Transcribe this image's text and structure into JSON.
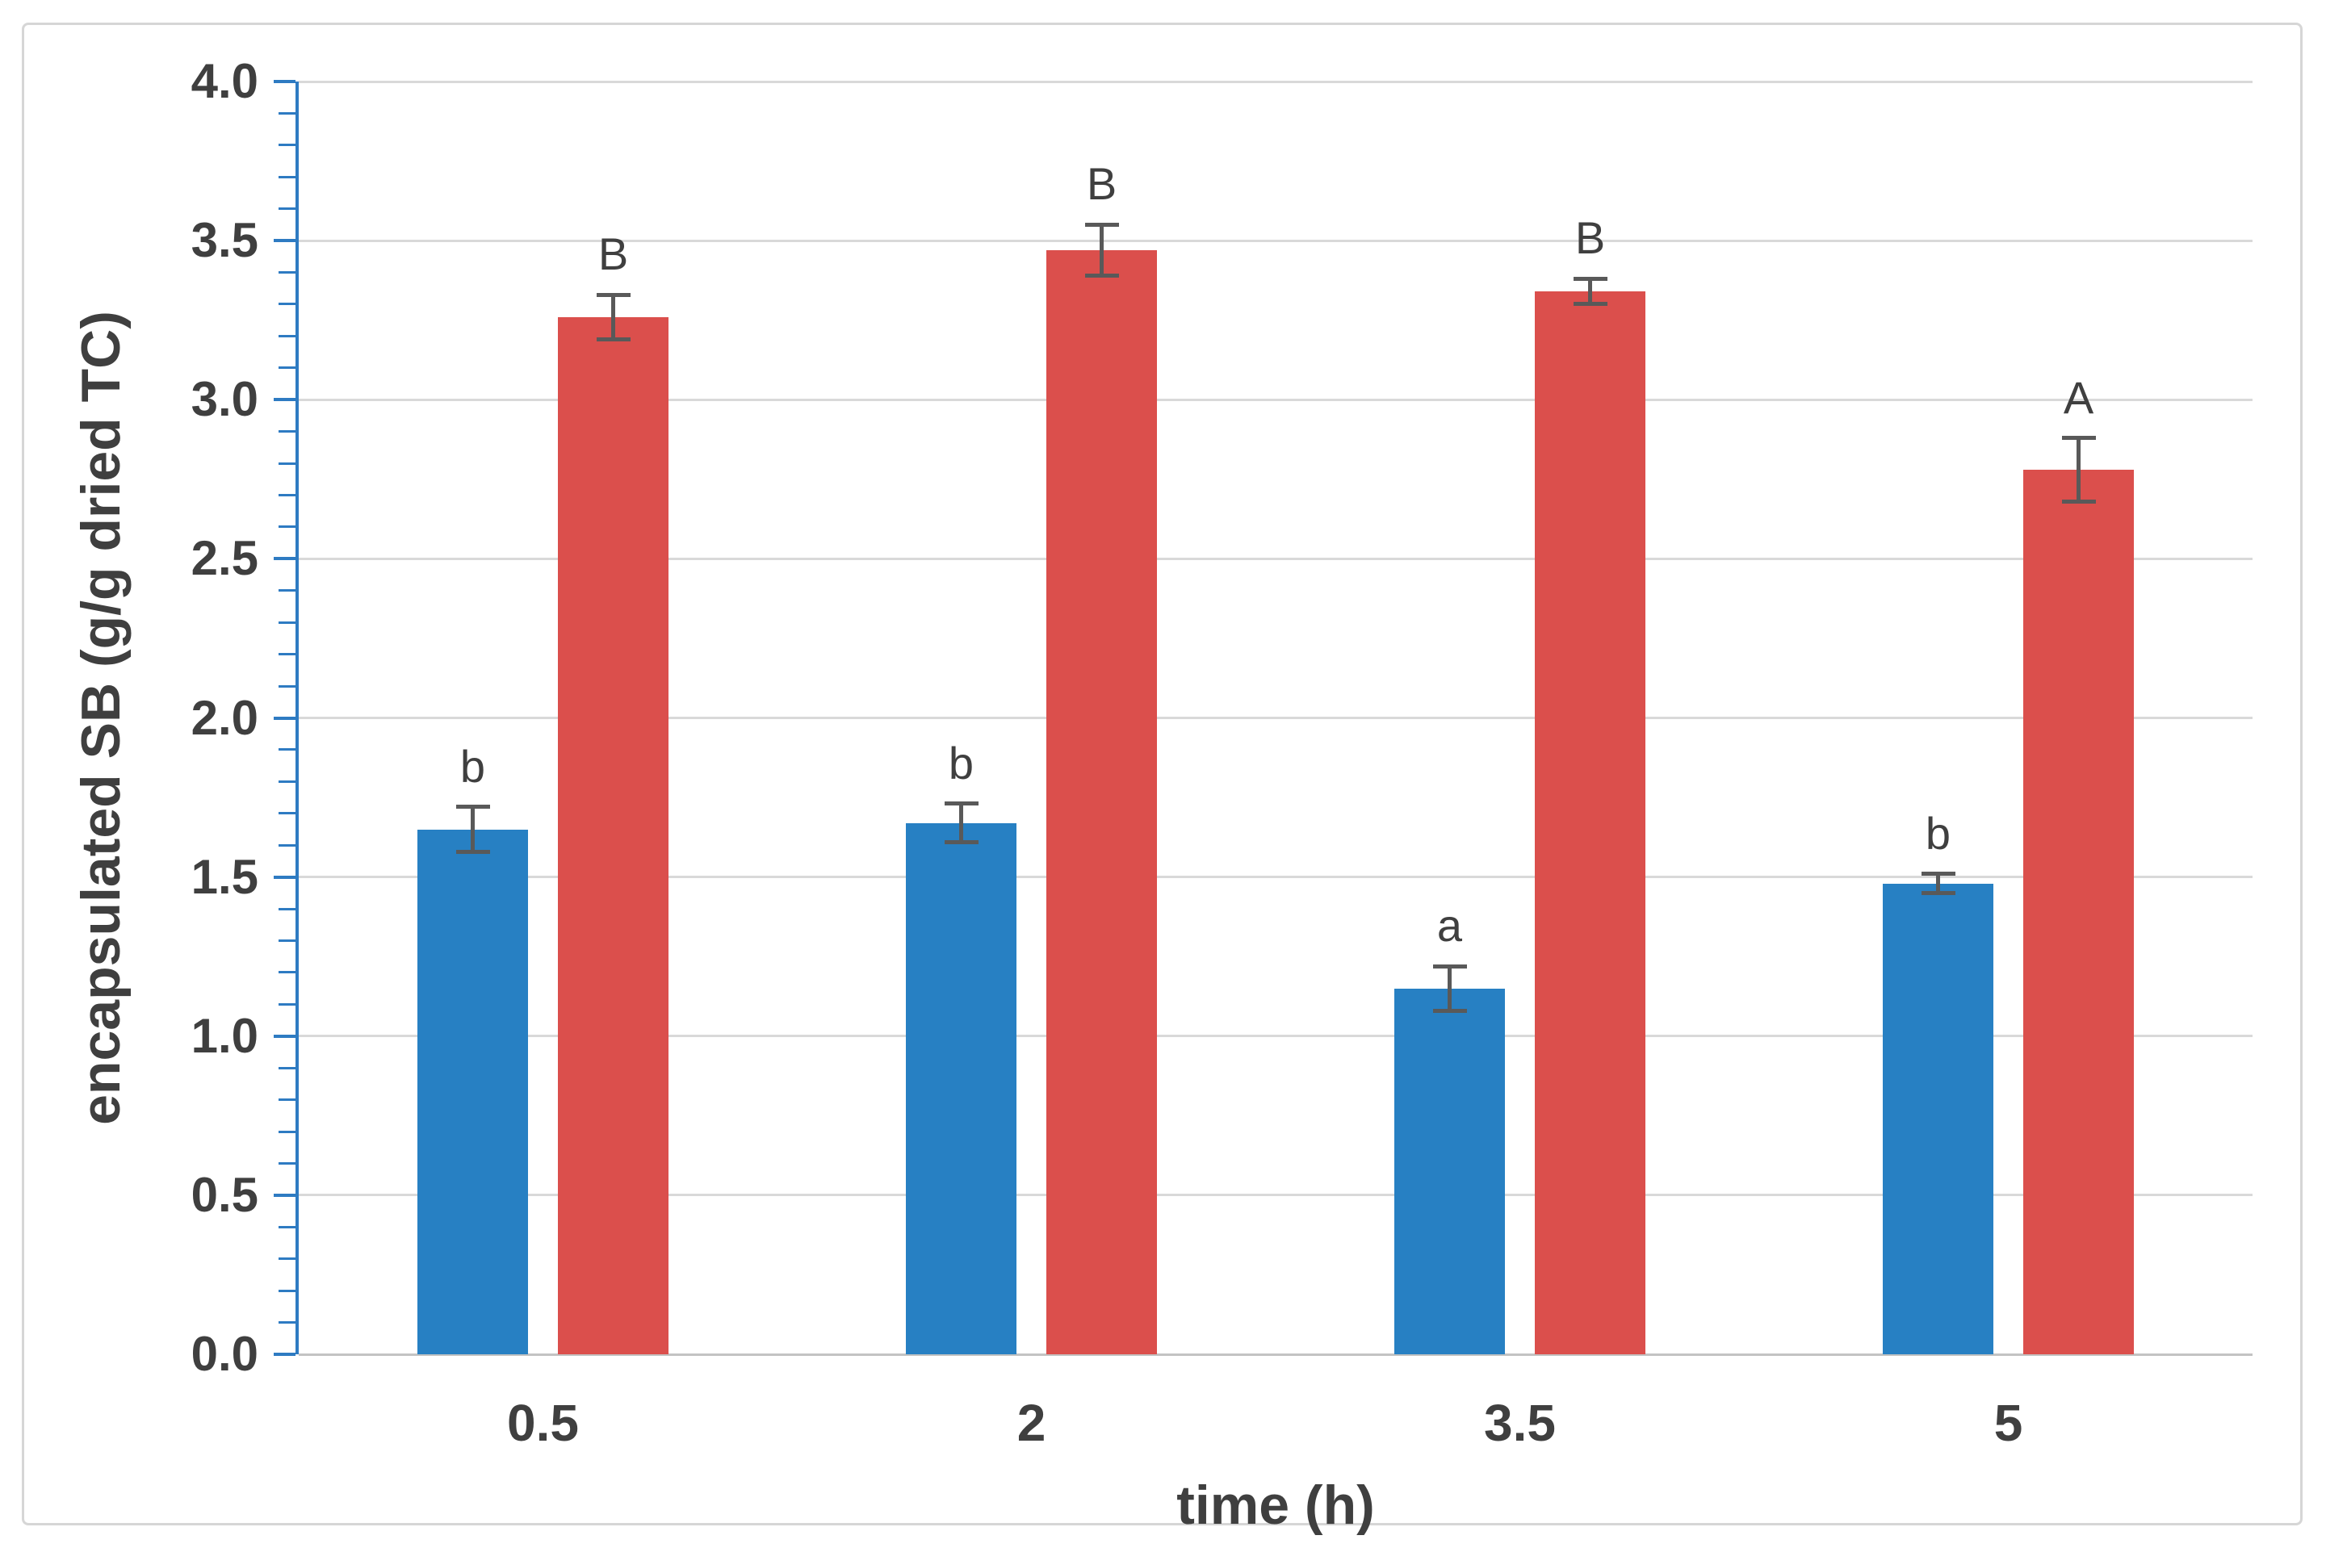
{
  "figure": {
    "background_color": "#ffffff",
    "border_color": "#d6d6d6"
  },
  "style": {
    "axis_line_color": "#2e7bc2",
    "gridline_color": "#d9d9d9",
    "baseline_color": "#c3c3c3",
    "text_color": "#3f3f3f",
    "error_bar_color": "#595959"
  },
  "chart_data": {
    "type": "bar",
    "title": "",
    "xlabel": "time (h)",
    "ylabel": "encapsulated SB (g/g dried TC)",
    "categories": [
      "0.5",
      "2",
      "3.5",
      "5"
    ],
    "series": [
      {
        "name": "blue-series",
        "color": "#2780c3",
        "values": [
          1.65,
          1.67,
          1.15,
          1.48
        ],
        "errors": [
          0.07,
          0.06,
          0.07,
          0.03
        ],
        "point_labels": [
          "b",
          "b",
          "a",
          "b"
        ]
      },
      {
        "name": "red-series",
        "color": "#db4f4c",
        "values": [
          3.26,
          3.47,
          3.34,
          2.78
        ],
        "errors": [
          0.07,
          0.08,
          0.04,
          0.1
        ],
        "point_labels": [
          "B",
          "B",
          "B",
          "A"
        ]
      }
    ],
    "ylim": [
      0,
      4
    ],
    "ytick_step": 0.5,
    "minor_tick_step": 0.1,
    "ytick_labels": [
      "0.0",
      "0.5",
      "1.0",
      "1.5",
      "2.0",
      "2.5",
      "3.0",
      "3.5",
      "4.0"
    ],
    "grid": true,
    "legend_position": "none"
  }
}
